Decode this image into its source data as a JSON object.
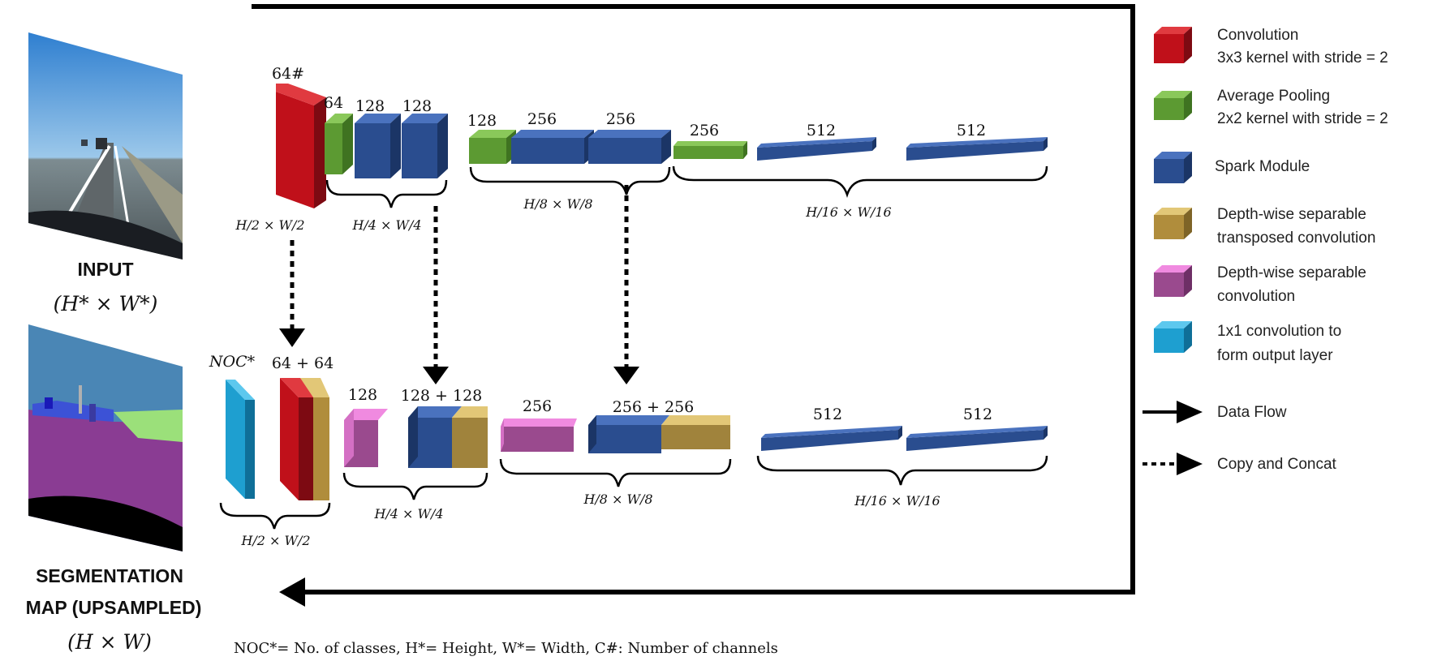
{
  "input": {
    "title": "INPUT",
    "dims": "(H* × W*)"
  },
  "output": {
    "title_line1": "SEGMENTATION",
    "title_line2": "MAP (UPSAMPLED)",
    "dims": "(H × W)"
  },
  "encoder": {
    "labels": [
      "64#",
      "64",
      "128",
      "128",
      "128",
      "256",
      "256",
      "256",
      "512",
      "512"
    ],
    "dims": [
      "H/2 × W/2",
      "H/4 × W/4",
      "H/8 × W/8",
      "H/16 × W/16"
    ]
  },
  "decoder": {
    "labels": [
      "NOC*",
      "64 + 64",
      "128",
      "128 + 128",
      "256",
      "256 + 256",
      "512",
      "512"
    ],
    "dims": [
      "H/2 × W/2",
      "H/4 × W/4",
      "H/8 × W/8",
      "H/16 × W/16"
    ]
  },
  "legend": {
    "items": [
      {
        "line1": "Convolution",
        "line2": "3x3 kernel with stride = 2",
        "color": "#c0101a"
      },
      {
        "line1": "Average Pooling",
        "line2": "2x2 kernel with stride = 2",
        "color": "#5c9a32"
      },
      {
        "line1": "Spark Module",
        "line2": "",
        "color": "#2a4d8f"
      },
      {
        "line1": "Depth-wise separable",
        "line2": "transposed convolution",
        "color": "#b08d3c"
      },
      {
        "line1": "Depth-wise separable",
        "line2": "convolution",
        "color": "#b45aa8"
      },
      {
        "line1": "1x1 convolution to",
        "line2": "form output layer",
        "color": "#1e9fd0"
      }
    ],
    "data_flow": "Data Flow",
    "copy_concat": "Copy and Concat"
  },
  "footnote": "NOC*= No. of classes, H*= Height, W*= Width, C#: Number of channels"
}
